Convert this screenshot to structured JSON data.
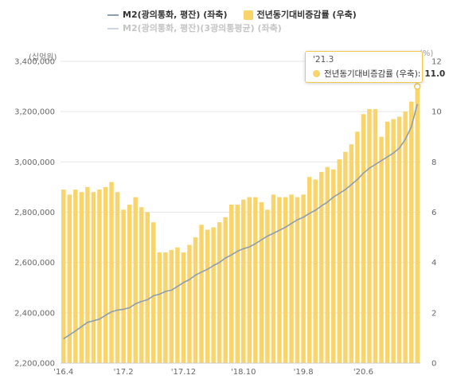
{
  "legend": {
    "series1": "M2(광의통화, 평잔) (좌축)",
    "series2": "전년동기대비증감률 (우축)",
    "series3": "M2(광의통화, 평잔)(3광의통평균) (좌축)"
  },
  "tooltip": {
    "title": "'21.3",
    "label": "전년동기대비증감률 (우축):",
    "value": "11.0"
  },
  "colors": {
    "bar": "#f8d46a",
    "line": "#8c9db0",
    "line_faded": "#cfd6dd",
    "grid": "#e6e6e6",
    "tooltip_border": "#f2c94c"
  },
  "chart_data": {
    "type": "bar",
    "left_axis_unit": "(십억원)",
    "right_axis_unit": "(%)",
    "left_ylim": [
      2200000,
      3400000
    ],
    "left_ticks": [
      "2,200,000",
      "2,400,000",
      "2,600,000",
      "2,800,000",
      "3,000,000",
      "3,200,000",
      "3,400,000"
    ],
    "right_ylim": [
      0,
      12
    ],
    "right_ticks": [
      "0",
      "2",
      "4",
      "6",
      "8",
      "10",
      "12"
    ],
    "x_tick_labels": [
      "'16.4",
      "'17.2",
      "'17.12",
      "'18.10",
      "'19.8",
      "'20.6"
    ],
    "x_tick_index": [
      0,
      10,
      20,
      30,
      40,
      50
    ],
    "grid": true,
    "legend_position": "top",
    "months": [
      "'16.4",
      "'16.5",
      "'16.6",
      "'16.7",
      "'16.8",
      "'16.9",
      "'16.10",
      "'16.11",
      "'16.12",
      "'17.1",
      "'17.2",
      "'17.3",
      "'17.4",
      "'17.5",
      "'17.6",
      "'17.7",
      "'17.8",
      "'17.9",
      "'17.10",
      "'17.11",
      "'17.12",
      "'18.1",
      "'18.2",
      "'18.3",
      "'18.4",
      "'18.5",
      "'18.6",
      "'18.7",
      "'18.8",
      "'18.9",
      "'18.10",
      "'18.11",
      "'18.12",
      "'19.1",
      "'19.2",
      "'19.3",
      "'19.4",
      "'19.5",
      "'19.6",
      "'19.7",
      "'19.8",
      "'19.9",
      "'19.10",
      "'19.11",
      "'19.12",
      "'20.1",
      "'20.2",
      "'20.3",
      "'20.4",
      "'20.5",
      "'20.6",
      "'20.7",
      "'20.8",
      "'20.9",
      "'20.10",
      "'20.11",
      "'20.12",
      "'21.1",
      "'21.2",
      "'21.3"
    ],
    "series": [
      {
        "name": "전년동기대비증감률 (우축)",
        "type": "bar",
        "axis": "right",
        "values": [
          6.9,
          6.7,
          6.9,
          6.8,
          7.0,
          6.8,
          6.9,
          7.0,
          7.2,
          6.8,
          6.1,
          6.3,
          6.6,
          6.2,
          6.0,
          5.6,
          4.4,
          4.4,
          4.5,
          4.6,
          4.4,
          4.7,
          5.0,
          5.5,
          5.3,
          5.4,
          5.6,
          5.8,
          6.3,
          6.3,
          6.5,
          6.6,
          6.6,
          6.4,
          6.1,
          6.7,
          6.6,
          6.6,
          6.7,
          6.6,
          6.7,
          7.4,
          7.3,
          7.6,
          7.8,
          7.7,
          8.1,
          8.4,
          8.7,
          9.2,
          9.9,
          10.1,
          10.1,
          9.0,
          9.6,
          9.7,
          9.8,
          10.0,
          10.4,
          11.0
        ]
      },
      {
        "name": "M2(광의통화, 평잔) (좌축)",
        "type": "line",
        "axis": "left",
        "values": [
          2297000,
          2312000,
          2328000,
          2345000,
          2362000,
          2368000,
          2375000,
          2390000,
          2404000,
          2411000,
          2414000,
          2420000,
          2436000,
          2445000,
          2452000,
          2468000,
          2474000,
          2485000,
          2490000,
          2505000,
          2520000,
          2532000,
          2550000,
          2562000,
          2573000,
          2588000,
          2600000,
          2618000,
          2630000,
          2645000,
          2655000,
          2662000,
          2675000,
          2690000,
          2705000,
          2716000,
          2728000,
          2740000,
          2755000,
          2770000,
          2780000,
          2795000,
          2808000,
          2825000,
          2840000,
          2860000,
          2875000,
          2890000,
          2910000,
          2930000,
          2955000,
          2975000,
          2990000,
          3005000,
          3020000,
          3035000,
          3055000,
          3090000,
          3140000,
          3230000
        ]
      }
    ]
  }
}
